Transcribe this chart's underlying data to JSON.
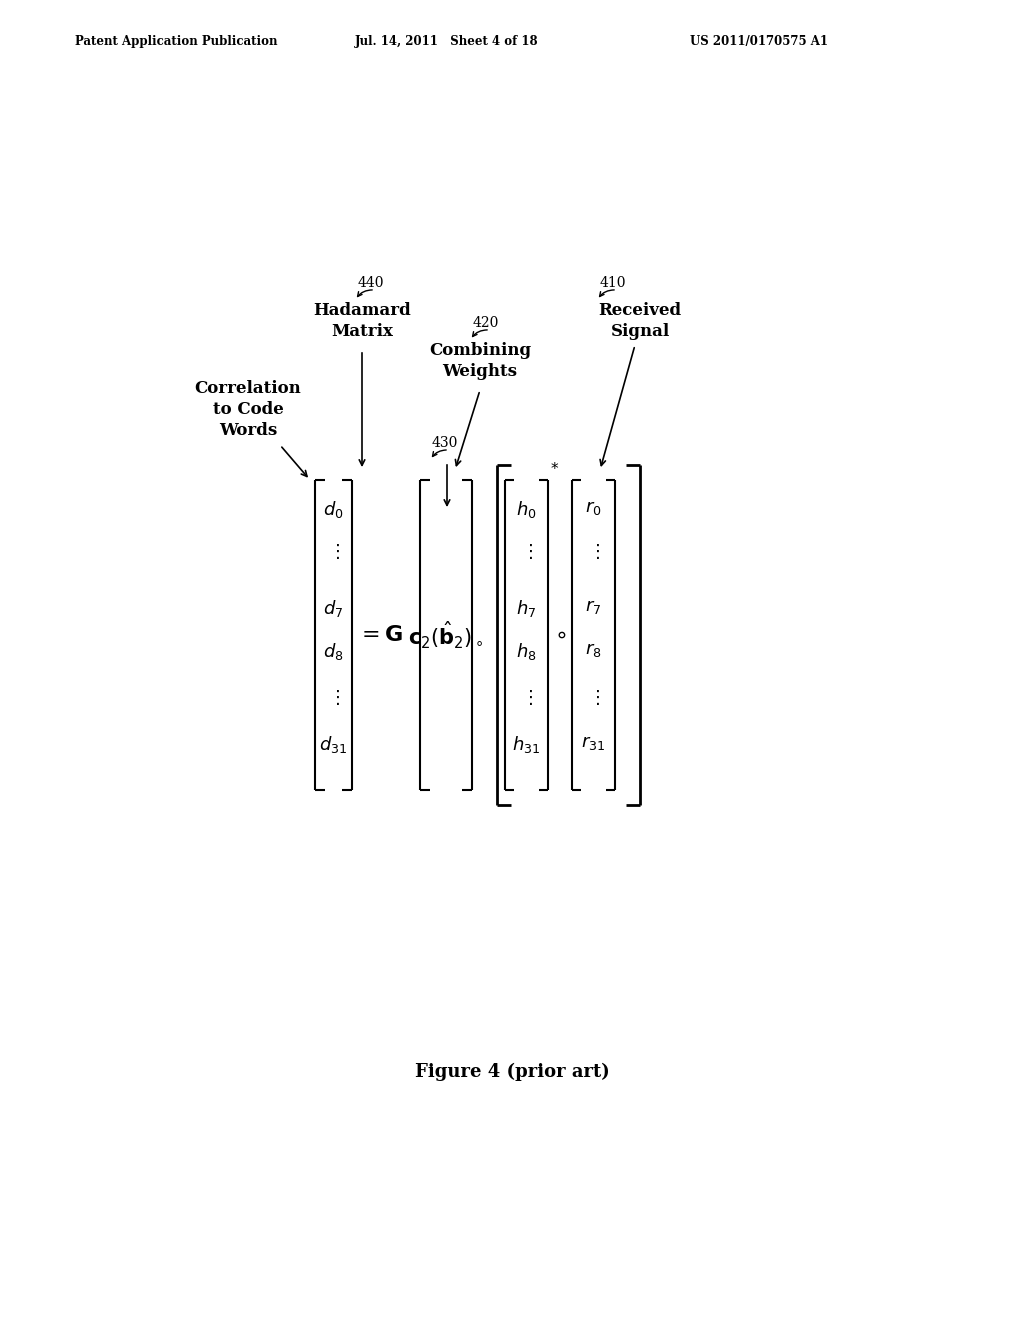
{
  "bg_color": "#ffffff",
  "header_left": "Patent Application Publication",
  "header_mid": "Jul. 14, 2011   Sheet 4 of 18",
  "header_right": "US 2011/0170575 A1",
  "figure_caption": "Figure 4 (prior art)",
  "label_440": "440",
  "label_420": "420",
  "label_410": "410",
  "label_430": "430",
  "text_hadamard": "Hadamard\nMatrix",
  "text_combining": "Combining\nWeights",
  "text_received": "Received\nSignal",
  "text_correlation": "Correlation\nto Code\nWords"
}
